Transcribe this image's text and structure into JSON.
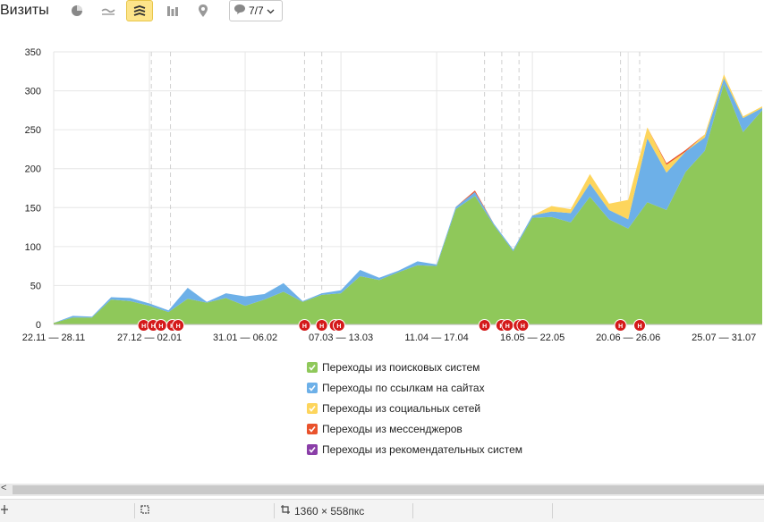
{
  "toolbar": {
    "title": "Визиты",
    "icons": [
      "pie-chart-icon",
      "line-chart-icon",
      "stacked-area-icon",
      "column-chart-icon",
      "map-icon"
    ],
    "comments_label": "7/7"
  },
  "chart_data": {
    "type": "area",
    "stacked": true,
    "ylim": [
      0,
      350
    ],
    "yticks": [
      0,
      50,
      100,
      150,
      200,
      250,
      300,
      350
    ],
    "grid": true,
    "x_tick_labels": [
      "22.11 — 28.11",
      "27.12 — 02.01",
      "31.01 — 06.02",
      "07.03 — 13.03",
      "11.04 — 17.04",
      "16.05 — 22.05",
      "20.06 — 26.06",
      "25.07 — 31.07"
    ],
    "x_tick_index": [
      0,
      5,
      10,
      15,
      20,
      25,
      30,
      35
    ],
    "n_points": 38,
    "series": [
      {
        "name": "Переходы из поисковых систем",
        "color": "#8fc85a",
        "values": [
          2,
          9,
          9,
          32,
          30,
          24,
          16,
          33,
          28,
          34,
          24,
          32,
          42,
          29,
          38,
          40,
          62,
          57,
          67,
          76,
          75,
          148,
          165,
          127,
          94,
          137,
          138,
          131,
          164,
          135,
          123,
          157,
          147,
          196,
          223,
          309,
          247,
          275
        ]
      },
      {
        "name": "Переходы по ссылкам на сайтах",
        "color": "#6db0e8",
        "values": [
          0,
          2,
          1,
          3,
          4,
          3,
          2,
          14,
          1,
          6,
          12,
          7,
          11,
          1,
          2,
          4,
          8,
          3,
          2,
          5,
          2,
          3,
          5,
          2,
          2,
          3,
          7,
          12,
          17,
          12,
          12,
          82,
          48,
          26,
          17,
          7,
          18,
          3
        ]
      },
      {
        "name": "Переходы из социальных сетей",
        "color": "#fdd55c",
        "values": [
          0,
          0,
          0,
          0,
          0,
          0,
          0,
          0,
          0,
          0,
          0,
          0,
          0,
          0,
          0,
          0,
          0,
          0,
          0,
          0,
          0,
          0,
          0,
          0,
          0,
          0,
          7,
          5,
          12,
          8,
          25,
          14,
          10,
          0,
          4,
          5,
          2,
          2
        ]
      },
      {
        "name": "Переходы из мессенджеров",
        "color": "#e9522c",
        "values": [
          0,
          0,
          0,
          0,
          0,
          0,
          0,
          0,
          0,
          0,
          0,
          0,
          0,
          0,
          0,
          0,
          0,
          0,
          0,
          0,
          0,
          0,
          2,
          0,
          0,
          0,
          0,
          0,
          0,
          0,
          0,
          0,
          2,
          2,
          0,
          0,
          0,
          0
        ]
      },
      {
        "name": "Переходы из рекомендательных систем",
        "color": "#8a3ea8",
        "values": [
          0,
          0,
          0,
          0,
          0,
          0,
          0,
          0,
          0,
          0,
          0,
          0,
          0,
          0,
          0,
          0,
          0,
          0,
          0,
          0,
          0,
          0,
          0,
          0,
          0,
          0,
          0,
          0,
          0,
          0,
          0,
          0,
          0,
          0,
          0,
          0,
          0,
          0
        ]
      }
    ],
    "annotation_marker_label": "Н",
    "annotation_index": [
      4.7,
      5.2,
      5.6,
      6.2,
      6.5,
      13.1,
      14.0,
      14.7,
      14.9,
      22.5,
      23.4,
      23.7,
      24.3,
      24.5,
      29.6,
      30.6
    ],
    "event_line_index": [
      5.1,
      6.1,
      13.1,
      14.0,
      22.5,
      23.4,
      24.3,
      29.6,
      30.6
    ]
  }
}
